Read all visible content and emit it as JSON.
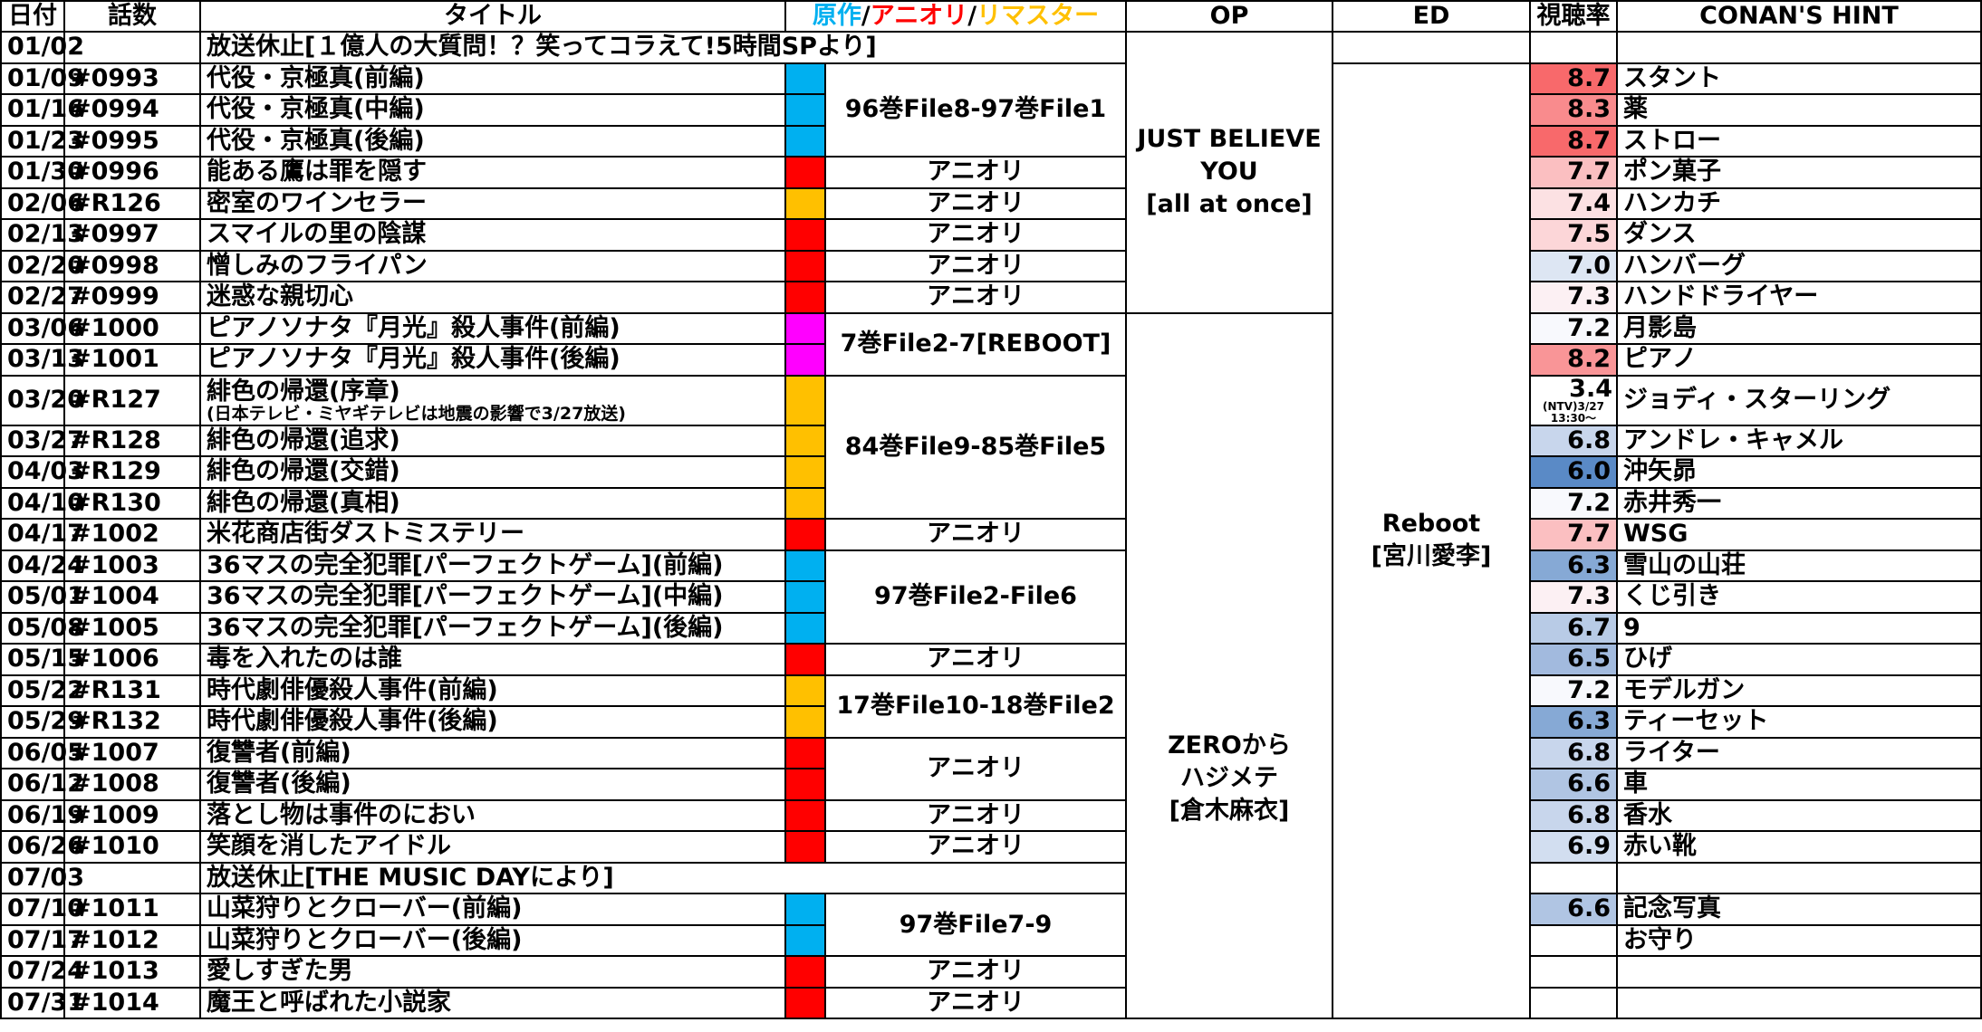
{
  "headers": {
    "date": "日付",
    "ep": "話数",
    "title": "タイトル",
    "source_a": "原作",
    "source_b": "アニオリ",
    "source_c": "リマスター",
    "sep": "/",
    "op": "OP",
    "ed": "ED",
    "rating": "視聴率",
    "hint": "CONAN'S HINT"
  },
  "colors": {
    "gensaku": "#00B0F0",
    "anioli": "#FF0000",
    "remaster": "#FFC000",
    "reboot": "#FF00FF"
  },
  "rows": [
    {
      "date": "01/02",
      "ep": "",
      "title": "放送休止[１億人の大質問！？笑ってコラえて!5時間SPより]",
      "src": "none",
      "rating": "",
      "rating_bg": "",
      "hint": ""
    },
    {
      "date": "01/09",
      "ep": "#0993",
      "title": "代役・京極真(前編)",
      "src": "gensaku",
      "rating": "8.7",
      "rating_bg": "#F8696B",
      "hint": "スタント"
    },
    {
      "date": "01/16",
      "ep": "#0994",
      "title": "代役・京極真(中編)",
      "src": "gensaku",
      "rating": "8.3",
      "rating_bg": "#F98B8D",
      "hint": "薬"
    },
    {
      "date": "01/23",
      "ep": "#0995",
      "title": "代役・京極真(後編)",
      "src": "gensaku",
      "rating": "8.7",
      "rating_bg": "#F8696B",
      "hint": "ストロー"
    },
    {
      "date": "01/30",
      "ep": "#0996",
      "title": "能ある鷹は罪を隠す",
      "src": "anioli",
      "rating": "7.7",
      "rating_bg": "#FBBFC1",
      "hint": "ポン菓子"
    },
    {
      "date": "02/06",
      "ep": "#R126",
      "title": "密室のワインセラー",
      "src": "remaster",
      "rating": "7.4",
      "rating_bg": "#FCE1E3",
      "hint": "ハンカチ"
    },
    {
      "date": "02/13",
      "ep": "#0997",
      "title": "スマイルの里の陰謀",
      "src": "anioli",
      "rating": "7.5",
      "rating_bg": "#FCD6D8",
      "hint": "ダンス"
    },
    {
      "date": "02/20",
      "ep": "#0998",
      "title": "憎しみのフライパン",
      "src": "anioli",
      "rating": "7.0",
      "rating_bg": "#DDE6F3",
      "hint": "ハンバーグ"
    },
    {
      "date": "02/27",
      "ep": "#0999",
      "title": "迷惑な親切心",
      "src": "anioli",
      "rating": "7.3",
      "rating_bg": "#FCF0F3",
      "hint": "ハンドドライヤー"
    },
    {
      "date": "03/06",
      "ep": "#1000",
      "title": "ピアノソナタ『月光』殺人事件(前編)",
      "src": "reboot",
      "rating": "7.2",
      "rating_bg": "#F8F9FD",
      "hint": "月影島"
    },
    {
      "date": "03/13",
      "ep": "#1001",
      "title": "ピアノソナタ『月光』殺人事件(後編)",
      "src": "reboot",
      "rating": "8.2",
      "rating_bg": "#F99597",
      "hint": "ピアノ"
    },
    {
      "date": "03/20",
      "ep": "#R127",
      "title": "緋色の帰還(序章)",
      "title_sub": "(日本テレビ・ミヤギテレビは地震の影響で3/27放送)",
      "src": "remaster",
      "rating": "3.4",
      "rating_note": "(NTV)3/27",
      "rating_note2": "13:30～",
      "rating_bg": "#FFFFFF",
      "hint": "ジョディ・スターリング"
    },
    {
      "date": "03/27",
      "ep": "#R128",
      "title": "緋色の帰還(追求)",
      "src": "remaster",
      "rating": "6.8",
      "rating_bg": "#C8D6EC",
      "hint": "アンドレ・キャメル"
    },
    {
      "date": "04/03",
      "ep": "#R129",
      "title": "緋色の帰還(交錯)",
      "src": "remaster",
      "rating": "6.0",
      "rating_bg": "#5A8AC6",
      "hint": "沖矢昴"
    },
    {
      "date": "04/10",
      "ep": "#R130",
      "title": "緋色の帰還(真相)",
      "src": "remaster",
      "rating": "7.2",
      "rating_bg": "#F8F9FD",
      "hint": "赤井秀一"
    },
    {
      "date": "04/17",
      "ep": "#1002",
      "title": "米花商店街ダストミステリー",
      "src": "anioli",
      "rating": "7.7",
      "rating_bg": "#FBBFC1",
      "hint": "WSG"
    },
    {
      "date": "04/24",
      "ep": "#1003",
      "title": "36マスの完全犯罪[パーフェクトゲーム](前編)",
      "src": "gensaku",
      "rating": "6.3",
      "rating_bg": "#86A9D5",
      "hint": "雪山の山荘"
    },
    {
      "date": "05/01",
      "ep": "#1004",
      "title": "36マスの完全犯罪[パーフェクトゲーム](中編)",
      "src": "gensaku",
      "rating": "7.3",
      "rating_bg": "#FCF0F3",
      "hint": "くじ引き"
    },
    {
      "date": "05/08",
      "ep": "#1005",
      "title": "36マスの完全犯罪[パーフェクトゲーム](後編)",
      "src": "gensaku",
      "rating": "6.7",
      "rating_bg": "#B8CBE6",
      "hint": "9"
    },
    {
      "date": "05/15",
      "ep": "#1006",
      "title": "毒を入れたのは誰",
      "src": "anioli",
      "rating": "6.5",
      "rating_bg": "#A2BADE",
      "hint": "ひげ"
    },
    {
      "date": "05/22",
      "ep": "#R131",
      "title": "時代劇俳優殺人事件(前編)",
      "src": "remaster",
      "rating": "7.2",
      "rating_bg": "#F8F9FD",
      "hint": "モデルガン"
    },
    {
      "date": "05/29",
      "ep": "#R132",
      "title": "時代劇俳優殺人事件(後編)",
      "src": "remaster",
      "rating": "6.3",
      "rating_bg": "#86A9D5",
      "hint": "ティーセット"
    },
    {
      "date": "06/05",
      "ep": "#1007",
      "title": "復讐者(前編)",
      "src": "anioli",
      "rating": "6.8",
      "rating_bg": "#C8D6EC",
      "hint": "ライター"
    },
    {
      "date": "06/12",
      "ep": "#1008",
      "title": "復讐者(後編)",
      "src": "anioli",
      "rating": "6.6",
      "rating_bg": "#B0C5E3",
      "hint": "車"
    },
    {
      "date": "06/19",
      "ep": "#1009",
      "title": "落とし物は事件のにおい",
      "src": "anioli",
      "rating": "6.8",
      "rating_bg": "#C8D6EC",
      "hint": "香水"
    },
    {
      "date": "06/26",
      "ep": "#1010",
      "title": "笑顔を消したアイドル",
      "src": "anioli",
      "rating": "6.9",
      "rating_bg": "#D2DEF0",
      "hint": "赤い靴"
    },
    {
      "date": "07/03",
      "ep": "",
      "title": "放送休止[THE MUSIC DAYにより]",
      "src": "none",
      "rating": "",
      "rating_bg": "",
      "hint": ""
    },
    {
      "date": "07/10",
      "ep": "#1011",
      "title": "山菜狩りとクローバー(前編)",
      "src": "gensaku",
      "rating": "6.6",
      "rating_bg": "#B0C5E3",
      "hint": "記念写真"
    },
    {
      "date": "07/17",
      "ep": "#1012",
      "title": "山菜狩りとクローバー(後編)",
      "src": "gensaku",
      "rating": "",
      "rating_bg": "",
      "hint": "お守り"
    },
    {
      "date": "07/24",
      "ep": "#1013",
      "title": "愛しすぎた男",
      "src": "anioli",
      "rating": "",
      "rating_bg": "",
      "hint": ""
    },
    {
      "date": "07/31",
      "ep": "#1014",
      "title": "魔王と呼ばれた小説家",
      "src": "anioli",
      "rating": "",
      "rating_bg": "",
      "hint": ""
    }
  ],
  "source_labels": {
    "s1": "96巻File8-97巻File1",
    "s2": "アニオリ",
    "s3": "アニオリ",
    "s4": "アニオリ",
    "s5": "アニオリ",
    "s6": "アニオリ",
    "s7": "7巻File2-7[REBOOT]",
    "s8": "84巻File9-85巻File5",
    "s9": "アニオリ",
    "s10": "97巻File2-File6",
    "s11": "アニオリ",
    "s12": "17巻File10-18巻File2",
    "s13": "アニオリ",
    "s14": "アニオリ",
    "s15": "アニオリ",
    "s16": "97巻File7-9",
    "s17": "アニオリ",
    "s18": "アニオリ"
  },
  "op": {
    "op1_l1": "JUST BELIEVE",
    "op1_l2": "YOU",
    "op1_l3": "[all at once]",
    "op2_l1": "ZEROから",
    "op2_l2": "ハジメテ",
    "op2_l3": "[倉木麻衣]"
  },
  "ed": {
    "ed1_l1": "Reboot",
    "ed1_l2": "[宮川愛李]"
  }
}
